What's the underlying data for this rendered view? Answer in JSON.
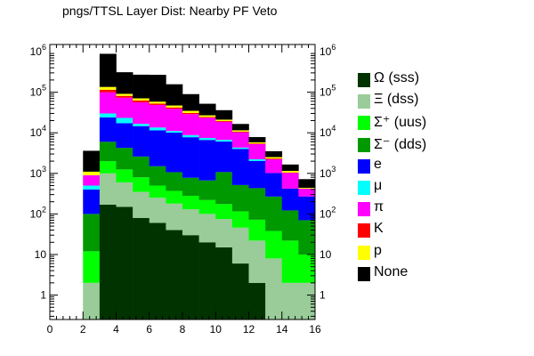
{
  "title": "pngs/TTSL Layer Dist: Nearby PF Veto",
  "chart_data": {
    "type": "bar",
    "stacked": true,
    "log_y": true,
    "x_edges": [
      0,
      1,
      2,
      3,
      4,
      5,
      6,
      7,
      8,
      9,
      10,
      11,
      12,
      13,
      14,
      15,
      16
    ],
    "xlim": [
      0,
      16
    ],
    "ylim": [
      0.25,
      1500000
    ],
    "x_tick_labels": [
      "0",
      "2",
      "4",
      "6",
      "8",
      "10",
      "12",
      "14",
      "16"
    ],
    "y_tick_labels": [
      {
        "base": "1",
        "exp": ""
      },
      {
        "base": "10",
        "exp": ""
      },
      {
        "base": "10",
        "exp": "2"
      },
      {
        "base": "10",
        "exp": "3"
      },
      {
        "base": "10",
        "exp": "4"
      },
      {
        "base": "10",
        "exp": "5"
      },
      {
        "base": "10",
        "exp": "6"
      }
    ],
    "legend_position": "right",
    "series": [
      {
        "name": "Ω (sss)",
        "color": "#003300",
        "values": [
          0,
          0,
          0,
          170,
          150,
          80,
          60,
          40,
          30,
          20,
          15,
          6,
          2,
          0,
          0,
          0
        ]
      },
      {
        "name": "Ξ (dss)",
        "color": "#99cc99",
        "values": [
          0,
          0,
          2,
          830,
          450,
          270,
          190,
          140,
          100,
          80,
          60,
          40,
          20,
          8,
          2,
          2
        ]
      },
      {
        "name": "Σ⁺ (uus)",
        "color": "#00ff00",
        "values": [
          0,
          0,
          10,
          1000,
          650,
          450,
          250,
          190,
          150,
          120,
          100,
          70,
          50,
          30,
          20,
          8
        ]
      },
      {
        "name": "Σ⁻ (dds)",
        "color": "#009900",
        "values": [
          0,
          0,
          88,
          4000,
          3000,
          1800,
          1000,
          700,
          500,
          450,
          900,
          400,
          360,
          230,
          100,
          60
        ]
      },
      {
        "name": "e",
        "color": "#0000ff",
        "values": [
          0,
          0,
          300,
          18000,
          13000,
          12000,
          10000,
          9000,
          7000,
          6000,
          5000,
          3500,
          1600,
          750,
          300,
          200
        ]
      },
      {
        "name": "μ",
        "color": "#00ffff",
        "values": [
          0,
          0,
          100,
          6000,
          6000,
          2000,
          2000,
          1000,
          1000,
          800,
          600,
          300,
          200,
          0,
          0,
          0
        ]
      },
      {
        "name": "π",
        "color": "#ff00ff",
        "values": [
          0,
          0,
          400,
          70000,
          50000,
          40000,
          35000,
          28000,
          20000,
          16000,
          12000,
          6000,
          3000,
          1200,
          600,
          150
        ]
      },
      {
        "name": "K",
        "color": "#ff0000",
        "values": [
          0,
          0,
          0,
          15000,
          8000,
          6000,
          4000,
          3000,
          2000,
          1000,
          800,
          400,
          200,
          100,
          30,
          0
        ]
      },
      {
        "name": "p",
        "color": "#ffff00",
        "values": [
          0,
          0,
          200,
          20000,
          10000,
          8000,
          6000,
          5000,
          4000,
          2500,
          1600,
          800,
          400,
          200,
          100,
          20
        ]
      },
      {
        "name": "None",
        "color": "#000000",
        "values": [
          0,
          0,
          2500,
          750000,
          220000,
          200000,
          210000,
          110000,
          55000,
          25000,
          15000,
          5000,
          2000,
          1000,
          500,
          280
        ]
      }
    ]
  }
}
